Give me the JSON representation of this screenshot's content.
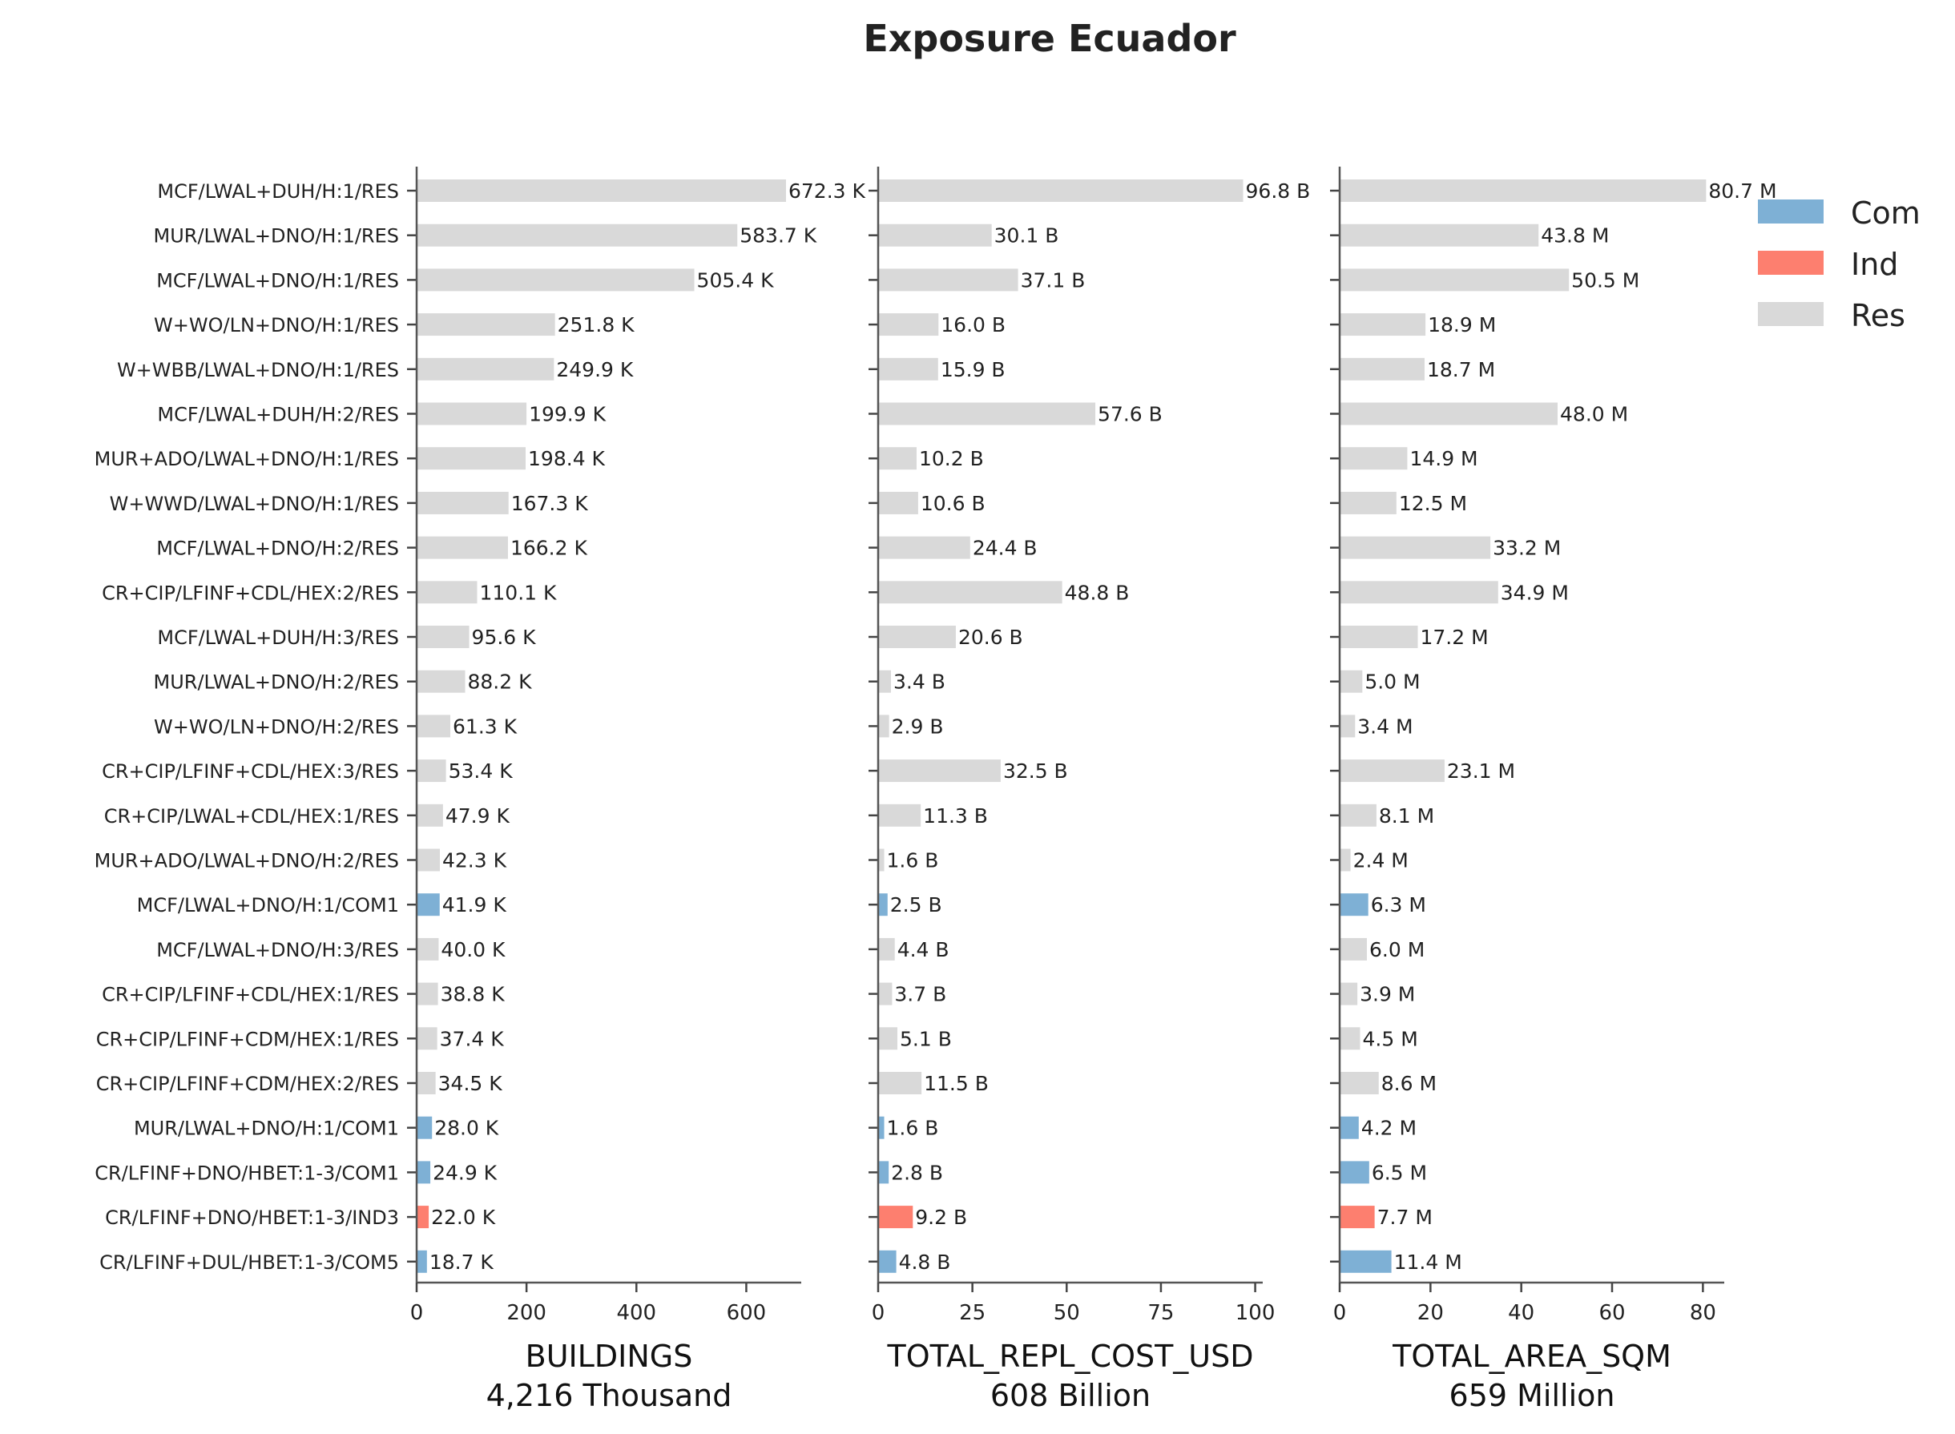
{
  "chart_data": {
    "type": "bar",
    "orientation": "horizontal",
    "title": "Exposure Ecuador",
    "categories": [
      "MCF/LWAL+DUH/H:1/RES",
      "MUR/LWAL+DNO/H:1/RES",
      "MCF/LWAL+DNO/H:1/RES",
      "W+WO/LN+DNO/H:1/RES",
      "W+WBB/LWAL+DNO/H:1/RES",
      "MCF/LWAL+DUH/H:2/RES",
      "MUR+ADO/LWAL+DNO/H:1/RES",
      "W+WWD/LWAL+DNO/H:1/RES",
      "MCF/LWAL+DNO/H:2/RES",
      "CR+CIP/LFINF+CDL/HEX:2/RES",
      "MCF/LWAL+DUH/H:3/RES",
      "MUR/LWAL+DNO/H:2/RES",
      "W+WO/LN+DNO/H:2/RES",
      "CR+CIP/LFINF+CDL/HEX:3/RES",
      "CR+CIP/LWAL+CDL/HEX:1/RES",
      "MUR+ADO/LWAL+DNO/H:2/RES",
      "MCF/LWAL+DNO/H:1/COM1",
      "MCF/LWAL+DNO/H:3/RES",
      "CR+CIP/LFINF+CDL/HEX:1/RES",
      "CR+CIP/LFINF+CDM/HEX:1/RES",
      "CR+CIP/LFINF+CDM/HEX:2/RES",
      "MUR/LWAL+DNO/H:1/COM1",
      "CR/LFINF+DNO/HBET:1-3/COM1",
      "CR/LFINF+DNO/HBET:1-3/IND3",
      "CR/LFINF+DUL/HBET:1-3/COM5"
    ],
    "category_group": [
      "Res",
      "Res",
      "Res",
      "Res",
      "Res",
      "Res",
      "Res",
      "Res",
      "Res",
      "Res",
      "Res",
      "Res",
      "Res",
      "Res",
      "Res",
      "Res",
      "Com",
      "Res",
      "Res",
      "Res",
      "Res",
      "Com",
      "Com",
      "Ind",
      "Com"
    ],
    "legend": {
      "placement": "top-right",
      "entries": [
        {
          "label": "Com",
          "color": "#7eb0d5"
        },
        {
          "label": "Ind",
          "color": "#fd7f6f"
        },
        {
          "label": "Res",
          "color": "#d9d9d9"
        }
      ]
    },
    "panels": [
      {
        "xlabel": "BUILDINGS",
        "total": "4,216 Thousand",
        "xlim": [
          0,
          700
        ],
        "xticks": [
          0,
          200,
          400,
          600
        ],
        "values": [
          672.3,
          583.7,
          505.4,
          251.8,
          249.9,
          199.9,
          198.4,
          167.3,
          166.2,
          110.1,
          95.6,
          88.2,
          61.3,
          53.4,
          47.9,
          42.3,
          41.9,
          40.0,
          38.8,
          37.4,
          34.5,
          28.0,
          24.9,
          22.0,
          18.7
        ],
        "labels": [
          "672.3 K",
          "583.7 K",
          "505.4 K",
          "251.8 K",
          "249.9 K",
          "199.9 K",
          "198.4 K",
          "167.3 K",
          "166.2 K",
          "110.1 K",
          "95.6 K",
          "88.2 K",
          "61.3 K",
          "53.4 K",
          "47.9 K",
          "42.3 K",
          "41.9 K",
          "40.0 K",
          "38.8 K",
          "37.4 K",
          "34.5 K",
          "28.0 K",
          "24.9 K",
          "22.0 K",
          "18.7 K"
        ]
      },
      {
        "xlabel": "TOTAL_REPL_COST_USD",
        "total": "608 Billion",
        "xlim": [
          0,
          102
        ],
        "xticks": [
          0,
          25,
          50,
          75,
          100
        ],
        "values": [
          96.8,
          30.1,
          37.1,
          16.0,
          15.9,
          57.6,
          10.2,
          10.6,
          24.4,
          48.8,
          20.6,
          3.4,
          2.9,
          32.5,
          11.3,
          1.6,
          2.5,
          4.4,
          3.7,
          5.1,
          11.5,
          1.6,
          2.8,
          9.2,
          4.8
        ],
        "labels": [
          "96.8 B",
          "30.1 B",
          "37.1 B",
          "16.0 B",
          "15.9 B",
          "57.6 B",
          "10.2 B",
          "10.6 B",
          "24.4 B",
          "48.8 B",
          "20.6 B",
          "3.4 B",
          "2.9 B",
          "32.5 B",
          "11.3 B",
          "1.6 B",
          "2.5 B",
          "4.4 B",
          "3.7 B",
          "5.1 B",
          "11.5 B",
          "1.6 B",
          "2.8 B",
          "9.2 B",
          "4.8 B"
        ]
      },
      {
        "xlabel": "TOTAL_AREA_SQM",
        "total": "659 Million",
        "xlim": [
          0,
          84.7
        ],
        "xticks": [
          0,
          20,
          40,
          60,
          80
        ],
        "values": [
          80.7,
          43.8,
          50.5,
          18.9,
          18.7,
          48.0,
          14.9,
          12.5,
          33.2,
          34.9,
          17.2,
          5.0,
          3.4,
          23.1,
          8.1,
          2.4,
          6.3,
          6.0,
          3.9,
          4.5,
          8.6,
          4.2,
          6.5,
          7.7,
          11.4
        ],
        "labels": [
          "80.7 M",
          "43.8 M",
          "50.5 M",
          "18.9 M",
          "18.7 M",
          "48.0 M",
          "14.9 M",
          "12.5 M",
          "33.2 M",
          "34.9 M",
          "17.2 M",
          "5.0 M",
          "3.4 M",
          "23.1 M",
          "8.1 M",
          "2.4 M",
          "6.3 M",
          "6.0 M",
          "3.9 M",
          "4.5 M",
          "8.6 M",
          "4.2 M",
          "6.5 M",
          "7.7 M",
          "11.4 M"
        ]
      }
    ]
  }
}
